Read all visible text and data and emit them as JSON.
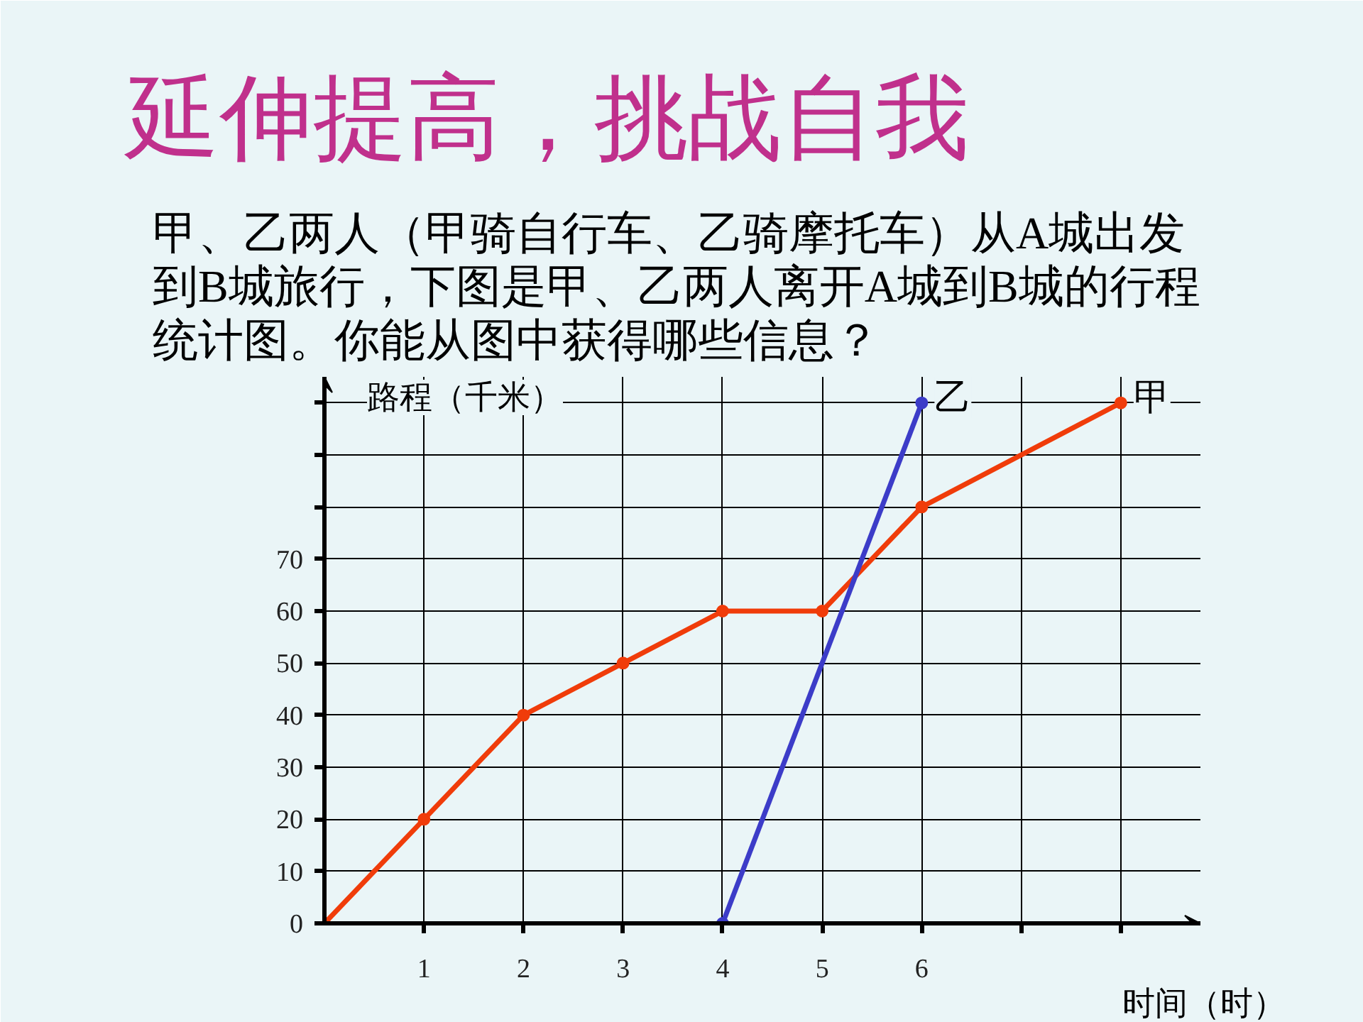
{
  "chart_data": {
    "type": "line",
    "title": "延伸提高，挑战自我",
    "subtitle": "甲、乙两人（甲骑自行车、乙骑摩托车）从A城出发到B城旅行，下图是甲、乙两人离开A城到B城的行程统计图。你能从图中获得哪些信息？",
    "xlabel": "时间（时）",
    "ylabel": "路程（千米）",
    "series": [
      {
        "name": "甲",
        "color": "#f03c0a",
        "x": [
          0,
          1,
          2,
          3,
          4,
          5,
          6,
          8
        ],
        "values": [
          0,
          20,
          40,
          50,
          60,
          60,
          80,
          100
        ]
      },
      {
        "name": "乙",
        "color": "#3c3cc8",
        "x": [
          4,
          6
        ],
        "values": [
          0,
          100
        ]
      }
    ],
    "xlim": [
      0,
      8.8
    ],
    "ylim": [
      0,
      105
    ],
    "xticks": [
      1,
      2,
      3,
      4,
      5,
      6,
      {
        "value": 7,
        "label": null
      },
      {
        "value": 8,
        "label": null
      }
    ],
    "yticks": [
      0,
      10,
      20,
      30,
      40,
      50,
      60,
      70,
      {
        "value": 80,
        "label": null
      },
      {
        "value": 90,
        "label": null
      },
      {
        "value": 100,
        "label": null
      }
    ],
    "grid": true,
    "marker": "circle",
    "line_style": "solid"
  }
}
